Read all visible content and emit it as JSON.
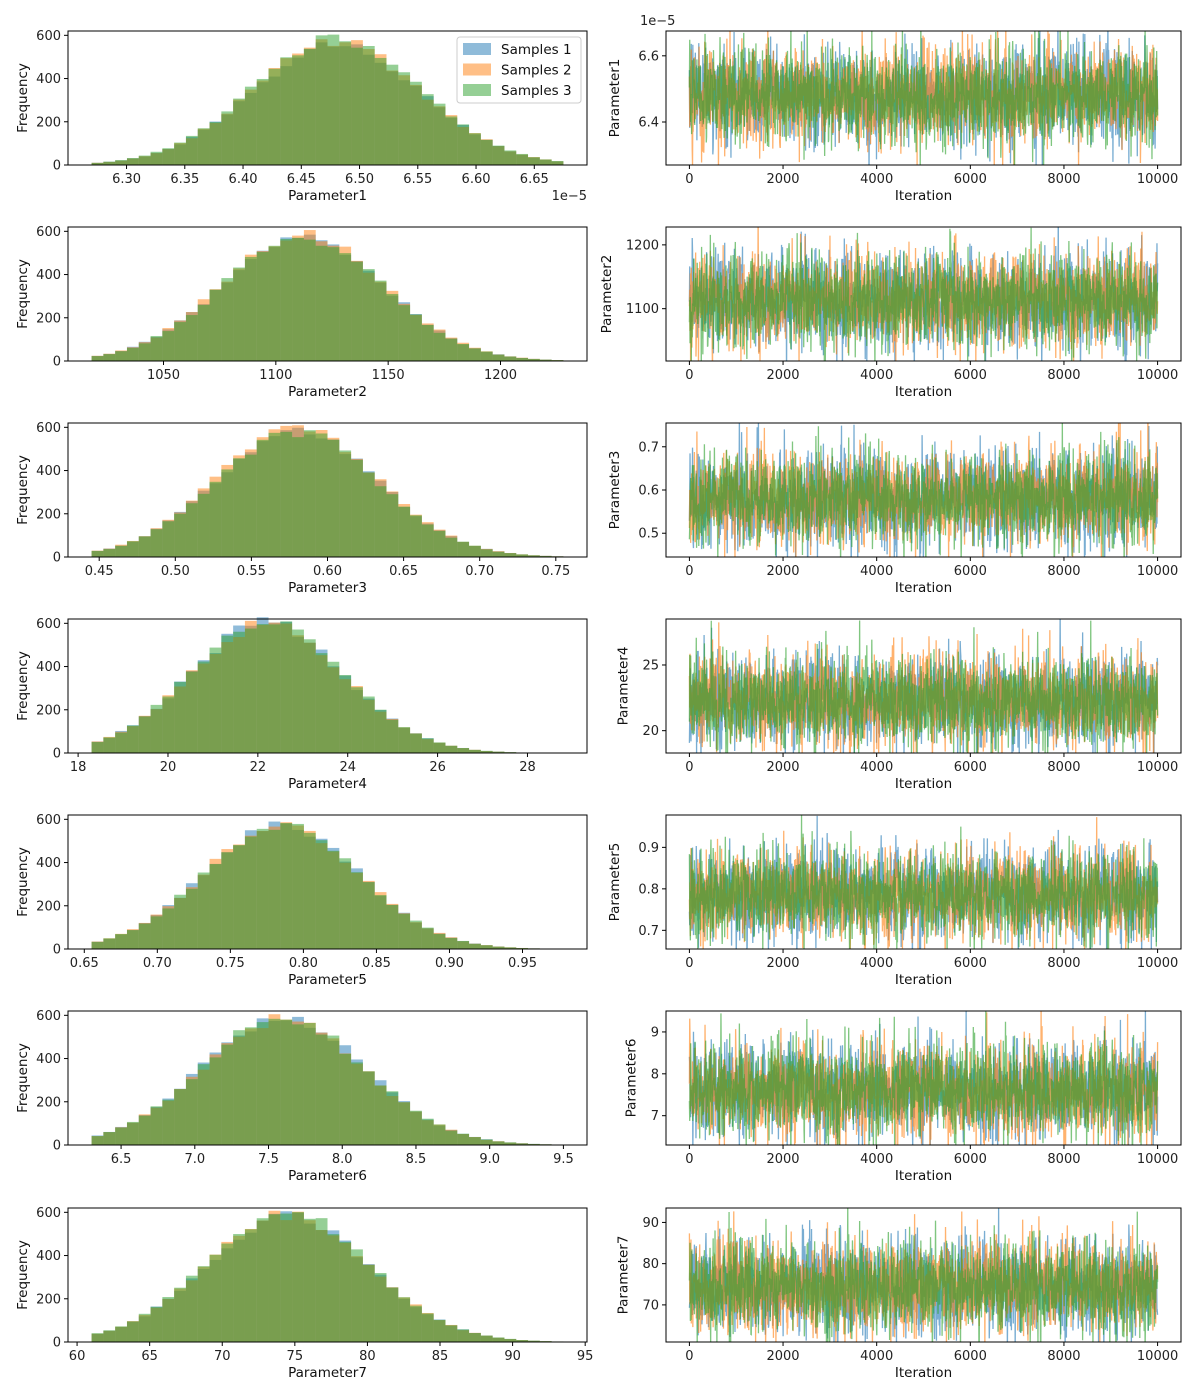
{
  "colors": {
    "series": [
      "#1f77b4",
      "#ff7f0e",
      "#2ca02c"
    ],
    "alpha": 0.5
  },
  "legend": {
    "entries": [
      "Samples 1",
      "Samples 2",
      "Samples 3"
    ],
    "placement": "top-right"
  },
  "chart_data": [
    {
      "type": "bar",
      "subtype": "histogram",
      "panel": "hist-1",
      "title": "",
      "xlabel": "Parameter1",
      "ylabel": "Frequency",
      "x_offset_label": "1e−5",
      "x_range": [
        6.27,
        6.675
      ],
      "ylim": [
        0,
        620
      ],
      "bins": 40,
      "mean": 6.48,
      "sd": 0.072,
      "xticks": [
        6.3,
        6.35,
        6.4,
        6.45,
        6.5,
        6.55,
        6.6,
        6.65
      ],
      "xtick_labels": [
        "6.30",
        "6.35",
        "6.40",
        "6.45",
        "6.50",
        "6.55",
        "6.60",
        "6.65"
      ],
      "yticks": [
        0,
        200,
        400,
        600
      ],
      "ytick_labels": [
        "0",
        "200",
        "400",
        "600"
      ],
      "series": [
        {
          "name": "Samples 1",
          "peak": 560
        },
        {
          "name": "Samples 2",
          "peak": 570
        },
        {
          "name": "Samples 3",
          "peak": 585
        }
      ],
      "has_legend": true
    },
    {
      "type": "line",
      "subtype": "trace",
      "panel": "trace-1",
      "title": "",
      "xlabel": "Iteration",
      "ylabel": "Parameter1",
      "y_offset_label": "1e−5",
      "ylim": [
        6.27,
        6.675
      ],
      "xlim": [
        -500,
        10500
      ],
      "n_iterations": 10000,
      "mean": 6.48,
      "sd": 0.072,
      "xticks": [
        0,
        2000,
        4000,
        6000,
        8000,
        10000
      ],
      "xtick_labels": [
        "0",
        "2000",
        "4000",
        "6000",
        "8000",
        "10000"
      ],
      "yticks": [
        6.4,
        6.6
      ],
      "ytick_labels": [
        "6.4",
        "6.6"
      ]
    },
    {
      "type": "bar",
      "subtype": "histogram",
      "panel": "hist-2",
      "title": "",
      "xlabel": "Parameter2",
      "ylabel": "Frequency",
      "x_range": [
        1018,
        1228
      ],
      "ylim": [
        0,
        620
      ],
      "bins": 40,
      "mean": 1112,
      "sd": 36,
      "xticks": [
        1050,
        1100,
        1150,
        1200
      ],
      "xtick_labels": [
        "1050",
        "1100",
        "1150",
        "1200"
      ],
      "yticks": [
        0,
        200,
        400,
        600
      ],
      "ytick_labels": [
        "0",
        "200",
        "400",
        "600"
      ],
      "series": [
        {
          "name": "Samples 1",
          "peak": 575
        },
        {
          "name": "Samples 2",
          "peak": 585
        },
        {
          "name": "Samples 3",
          "peak": 570
        }
      ],
      "has_legend": false
    },
    {
      "type": "line",
      "subtype": "trace",
      "panel": "trace-2",
      "title": "",
      "xlabel": "Iteration",
      "ylabel": "Parameter2",
      "ylim": [
        1018,
        1228
      ],
      "xlim": [
        -500,
        10500
      ],
      "n_iterations": 10000,
      "mean": 1112,
      "sd": 36,
      "xticks": [
        0,
        2000,
        4000,
        6000,
        8000,
        10000
      ],
      "xtick_labels": [
        "0",
        "2000",
        "4000",
        "6000",
        "8000",
        "10000"
      ],
      "yticks": [
        1100,
        1200
      ],
      "ytick_labels": [
        "1100",
        "1200"
      ]
    },
    {
      "type": "bar",
      "subtype": "histogram",
      "panel": "hist-3",
      "title": "",
      "xlabel": "Parameter3",
      "ylabel": "Frequency",
      "x_range": [
        0.445,
        0.755
      ],
      "ylim": [
        0,
        620
      ],
      "bins": 40,
      "mean": 0.58,
      "sd": 0.053,
      "xticks": [
        0.45,
        0.5,
        0.55,
        0.6,
        0.65,
        0.7,
        0.75
      ],
      "xtick_labels": [
        "0.45",
        "0.50",
        "0.55",
        "0.60",
        "0.65",
        "0.70",
        "0.75"
      ],
      "yticks": [
        0,
        200,
        400,
        600
      ],
      "ytick_labels": [
        "0",
        "200",
        "400",
        "600"
      ],
      "series": [
        {
          "name": "Samples 1",
          "peak": 585
        },
        {
          "name": "Samples 2",
          "peak": 600
        },
        {
          "name": "Samples 3",
          "peak": 575
        }
      ],
      "has_legend": false
    },
    {
      "type": "line",
      "subtype": "trace",
      "panel": "trace-3",
      "title": "",
      "xlabel": "Iteration",
      "ylabel": "Parameter3",
      "ylim": [
        0.445,
        0.755
      ],
      "xlim": [
        -500,
        10500
      ],
      "n_iterations": 10000,
      "mean": 0.58,
      "sd": 0.053,
      "xticks": [
        0,
        2000,
        4000,
        6000,
        8000,
        10000
      ],
      "xtick_labels": [
        "0",
        "2000",
        "4000",
        "6000",
        "8000",
        "10000"
      ],
      "yticks": [
        0.5,
        0.6,
        0.7
      ],
      "ytick_labels": [
        "0.5",
        "0.6",
        "0.7"
      ]
    },
    {
      "type": "bar",
      "subtype": "histogram",
      "panel": "hist-4",
      "title": "",
      "xlabel": "Parameter4",
      "ylabel": "Frequency",
      "x_range": [
        18.3,
        28.8
      ],
      "ylim": [
        0,
        620
      ],
      "bins": 40,
      "mean": 22.2,
      "sd": 1.7,
      "xticks": [
        18,
        20,
        22,
        24,
        26,
        28
      ],
      "xtick_labels": [
        "18",
        "20",
        "22",
        "24",
        "26",
        "28"
      ],
      "yticks": [
        0,
        200,
        400,
        600
      ],
      "ytick_labels": [
        "0",
        "200",
        "400",
        "600"
      ],
      "series": [
        {
          "name": "Samples 1",
          "peak": 605
        },
        {
          "name": "Samples 2",
          "peak": 600
        },
        {
          "name": "Samples 3",
          "peak": 610
        }
      ],
      "has_legend": false
    },
    {
      "type": "line",
      "subtype": "trace",
      "panel": "trace-4",
      "title": "",
      "xlabel": "Iteration",
      "ylabel": "Parameter4",
      "ylim": [
        18.3,
        28.5
      ],
      "xlim": [
        -500,
        10500
      ],
      "n_iterations": 10000,
      "mean": 22.2,
      "sd": 1.7,
      "xticks": [
        0,
        2000,
        4000,
        6000,
        8000,
        10000
      ],
      "xtick_labels": [
        "0",
        "2000",
        "4000",
        "6000",
        "8000",
        "10000"
      ],
      "yticks": [
        20,
        25
      ],
      "ytick_labels": [
        "20",
        "25"
      ]
    },
    {
      "type": "bar",
      "subtype": "histogram",
      "panel": "hist-5",
      "title": "",
      "xlabel": "Parameter5",
      "ylabel": "Frequency",
      "x_range": [
        0.655,
        0.978
      ],
      "ylim": [
        0,
        620
      ],
      "bins": 40,
      "mean": 0.785,
      "sd": 0.053,
      "xticks": [
        0.65,
        0.7,
        0.75,
        0.8,
        0.85,
        0.9,
        0.95
      ],
      "xtick_labels": [
        "0.65",
        "0.70",
        "0.75",
        "0.80",
        "0.85",
        "0.90",
        "0.95"
      ],
      "yticks": [
        0,
        200,
        400,
        600
      ],
      "ytick_labels": [
        "0",
        "200",
        "400",
        "600"
      ],
      "series": [
        {
          "name": "Samples 1",
          "peak": 575
        },
        {
          "name": "Samples 2",
          "peak": 580
        },
        {
          "name": "Samples 3",
          "peak": 570
        }
      ],
      "has_legend": false
    },
    {
      "type": "line",
      "subtype": "trace",
      "panel": "trace-5",
      "title": "",
      "xlabel": "Iteration",
      "ylabel": "Parameter5",
      "ylim": [
        0.655,
        0.978
      ],
      "xlim": [
        -500,
        10500
      ],
      "n_iterations": 10000,
      "mean": 0.785,
      "sd": 0.053,
      "xticks": [
        0,
        2000,
        4000,
        6000,
        8000,
        10000
      ],
      "xtick_labels": [
        "0",
        "2000",
        "4000",
        "6000",
        "8000",
        "10000"
      ],
      "yticks": [
        0.7,
        0.8,
        0.9
      ],
      "ytick_labels": [
        "0.7",
        "0.8",
        "0.9"
      ]
    },
    {
      "type": "bar",
      "subtype": "histogram",
      "panel": "hist-6",
      "title": "",
      "xlabel": "Parameter6",
      "ylabel": "Frequency",
      "x_range": [
        6.3,
        9.5
      ],
      "ylim": [
        0,
        620
      ],
      "bins": 40,
      "mean": 7.6,
      "sd": 0.55,
      "xticks": [
        6.5,
        7.0,
        7.5,
        8.0,
        8.5,
        9.0,
        9.5
      ],
      "xtick_labels": [
        "6.5",
        "7.0",
        "7.5",
        "8.0",
        "8.5",
        "9.0",
        "9.5"
      ],
      "yticks": [
        0,
        200,
        400,
        600
      ],
      "ytick_labels": [
        "0",
        "200",
        "400",
        "600"
      ],
      "series": [
        {
          "name": "Samples 1",
          "peak": 595
        },
        {
          "name": "Samples 2",
          "peak": 585
        },
        {
          "name": "Samples 3",
          "peak": 590
        }
      ],
      "has_legend": false
    },
    {
      "type": "line",
      "subtype": "trace",
      "panel": "trace-6",
      "title": "",
      "xlabel": "Iteration",
      "ylabel": "Parameter6",
      "ylim": [
        6.3,
        9.5
      ],
      "xlim": [
        -500,
        10500
      ],
      "n_iterations": 10000,
      "mean": 7.6,
      "sd": 0.55,
      "xticks": [
        0,
        2000,
        4000,
        6000,
        8000,
        10000
      ],
      "xtick_labels": [
        "0",
        "2000",
        "4000",
        "6000",
        "8000",
        "10000"
      ],
      "yticks": [
        7,
        8,
        9
      ],
      "ytick_labels": [
        "7",
        "8",
        "9"
      ]
    },
    {
      "type": "bar",
      "subtype": "histogram",
      "panel": "hist-7",
      "title": "",
      "xlabel": "Parameter7",
      "ylabel": "Frequency",
      "x_range": [
        61,
        93.5
      ],
      "ylim": [
        0,
        620
      ],
      "bins": 40,
      "mean": 74.5,
      "sd": 5.6,
      "xticks": [
        60,
        65,
        70,
        75,
        80,
        85,
        90,
        95
      ],
      "xtick_labels": [
        "60",
        "65",
        "70",
        "75",
        "80",
        "85",
        "90",
        "95"
      ],
      "yticks": [
        0,
        200,
        400,
        600
      ],
      "ytick_labels": [
        "0",
        "200",
        "400",
        "600"
      ],
      "series": [
        {
          "name": "Samples 1",
          "peak": 580
        },
        {
          "name": "Samples 2",
          "peak": 590
        },
        {
          "name": "Samples 3",
          "peak": 605
        }
      ],
      "has_legend": false
    },
    {
      "type": "line",
      "subtype": "trace",
      "panel": "trace-7",
      "title": "",
      "xlabel": "Iteration",
      "ylabel": "Parameter7",
      "ylim": [
        61,
        93.5
      ],
      "xlim": [
        -500,
        10500
      ],
      "n_iterations": 10000,
      "mean": 74.5,
      "sd": 5.6,
      "xticks": [
        0,
        2000,
        4000,
        6000,
        8000,
        10000
      ],
      "xtick_labels": [
        "0",
        "2000",
        "4000",
        "6000",
        "8000",
        "10000"
      ],
      "yticks": [
        70,
        80,
        90
      ],
      "ytick_labels": [
        "70",
        "80",
        "90"
      ]
    }
  ]
}
